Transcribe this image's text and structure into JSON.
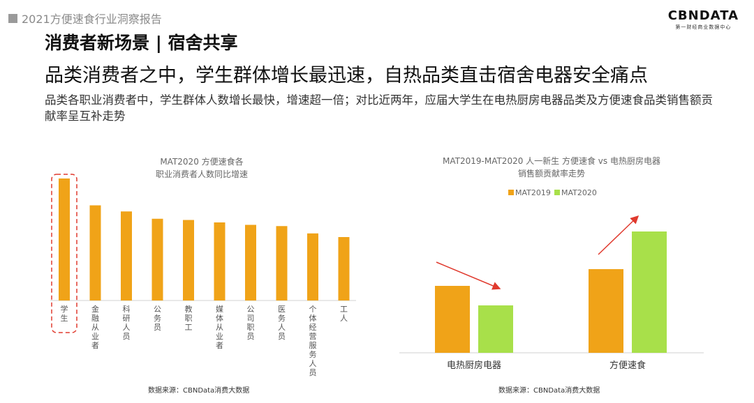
{
  "header": {
    "report_label": "2021方便速食行业洞察报告",
    "logo_brand": "CBNDATA",
    "logo_tagline": "第一财经商业数据中心"
  },
  "slide": {
    "title": "消费者新场景 | 宿舍共享",
    "headline": "品类消费者之中，学生群体增长最迅速，自热品类直击宿舍电器安全痛点",
    "description": "品类各职业消费者中，学生群体人数增长最快，增速超一倍；对比近两年，应届大学生在电热厨房电器品类及方便速食品类销售额贡献率呈互补走势"
  },
  "chart_data": [
    {
      "type": "bar",
      "title": "MAT2020 方便速食各",
      "subtitle": "职业消费者人数同比增速",
      "categories": [
        "学生",
        "金融从业者",
        "科研人员",
        "公务员",
        "教职工",
        "媒体从业者",
        "公司职员",
        "医务人员",
        "个体经营服务人员",
        "工人"
      ],
      "values": [
        100,
        78,
        73,
        67,
        66,
        64,
        62,
        61,
        55,
        52
      ],
      "ylim": [
        0,
        110
      ],
      "highlight": "学生",
      "color": "#F0A318",
      "source": "数据来源：CBNData消费大数据"
    },
    {
      "type": "bar",
      "title": "MAT2019-MAT2020 人一新生 方便速食 vs 电热厨房电器",
      "subtitle": "销售额贡献率走势",
      "categories": [
        "电热厨房电器",
        "方便速食"
      ],
      "series": [
        {
          "name": "MAT2019",
          "values": [
            48,
            60
          ],
          "color": "#F0A318"
        },
        {
          "name": "MAT2020",
          "values": [
            34,
            87
          ],
          "color": "#A8E04A"
        }
      ],
      "ylim": [
        0,
        100
      ],
      "legend": "top",
      "trend": [
        "down",
        "up"
      ],
      "source": "数据来源：CBNData消费大数据"
    }
  ]
}
